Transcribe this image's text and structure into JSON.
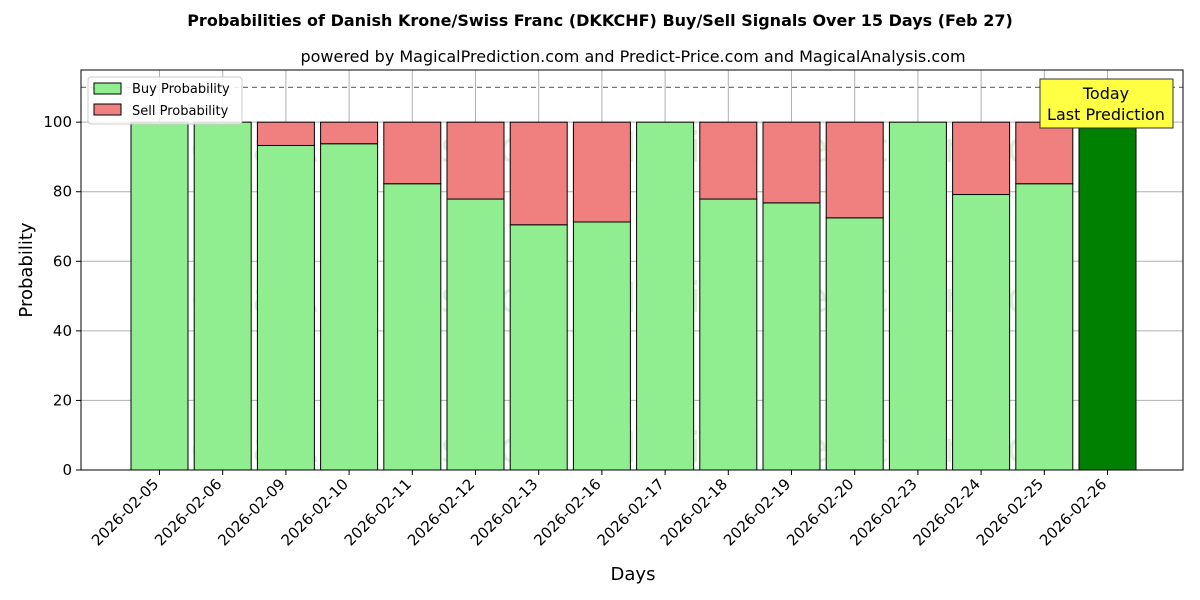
{
  "chart_data": {
    "type": "bar",
    "stacked": true,
    "title": "Probabilities of Danish Krone/Swiss Franc (DKKCHF) Buy/Sell Signals Over 15 Days (Feb 27)",
    "subtitle": "powered by MagicalPrediction.com and Predict-Price.com and MagicalAnalysis.com",
    "xlabel": "Days",
    "ylabel": "Probability",
    "ylim": [
      0,
      115
    ],
    "yticks": [
      0,
      20,
      40,
      60,
      80,
      100
    ],
    "grid": true,
    "legend_position": "top-left",
    "reference_line": 110,
    "categories": [
      "2026-02-05",
      "2026-02-06",
      "2026-02-09",
      "2026-02-10",
      "2026-02-11",
      "2026-02-12",
      "2026-02-13",
      "2026-02-16",
      "2026-02-17",
      "2026-02-18",
      "2026-02-19",
      "2026-02-20",
      "2026-02-23",
      "2026-02-24",
      "2026-02-25",
      "2026-02-26"
    ],
    "series": [
      {
        "name": "Buy Probability",
        "color": "#90ee90",
        "values": [
          100,
          100,
          93.3,
          93.8,
          82.3,
          77.9,
          70.5,
          71.3,
          100,
          77.9,
          76.8,
          72.5,
          100,
          79.2,
          82.3,
          100
        ]
      },
      {
        "name": "Sell Probability",
        "color": "#f08080",
        "values": [
          0,
          0,
          6.7,
          6.2,
          17.7,
          22.1,
          29.5,
          28.7,
          0,
          22.1,
          23.2,
          27.5,
          0,
          20.8,
          17.7,
          0
        ]
      }
    ],
    "highlight_index": 15,
    "highlight_color": "#008000",
    "annotation": {
      "line1": "Today",
      "line2": "Last Prediction",
      "color": "#ffff44"
    },
    "watermarks": [
      "MagicalAnalysis.com",
      "MagicalPrediction.com"
    ]
  }
}
